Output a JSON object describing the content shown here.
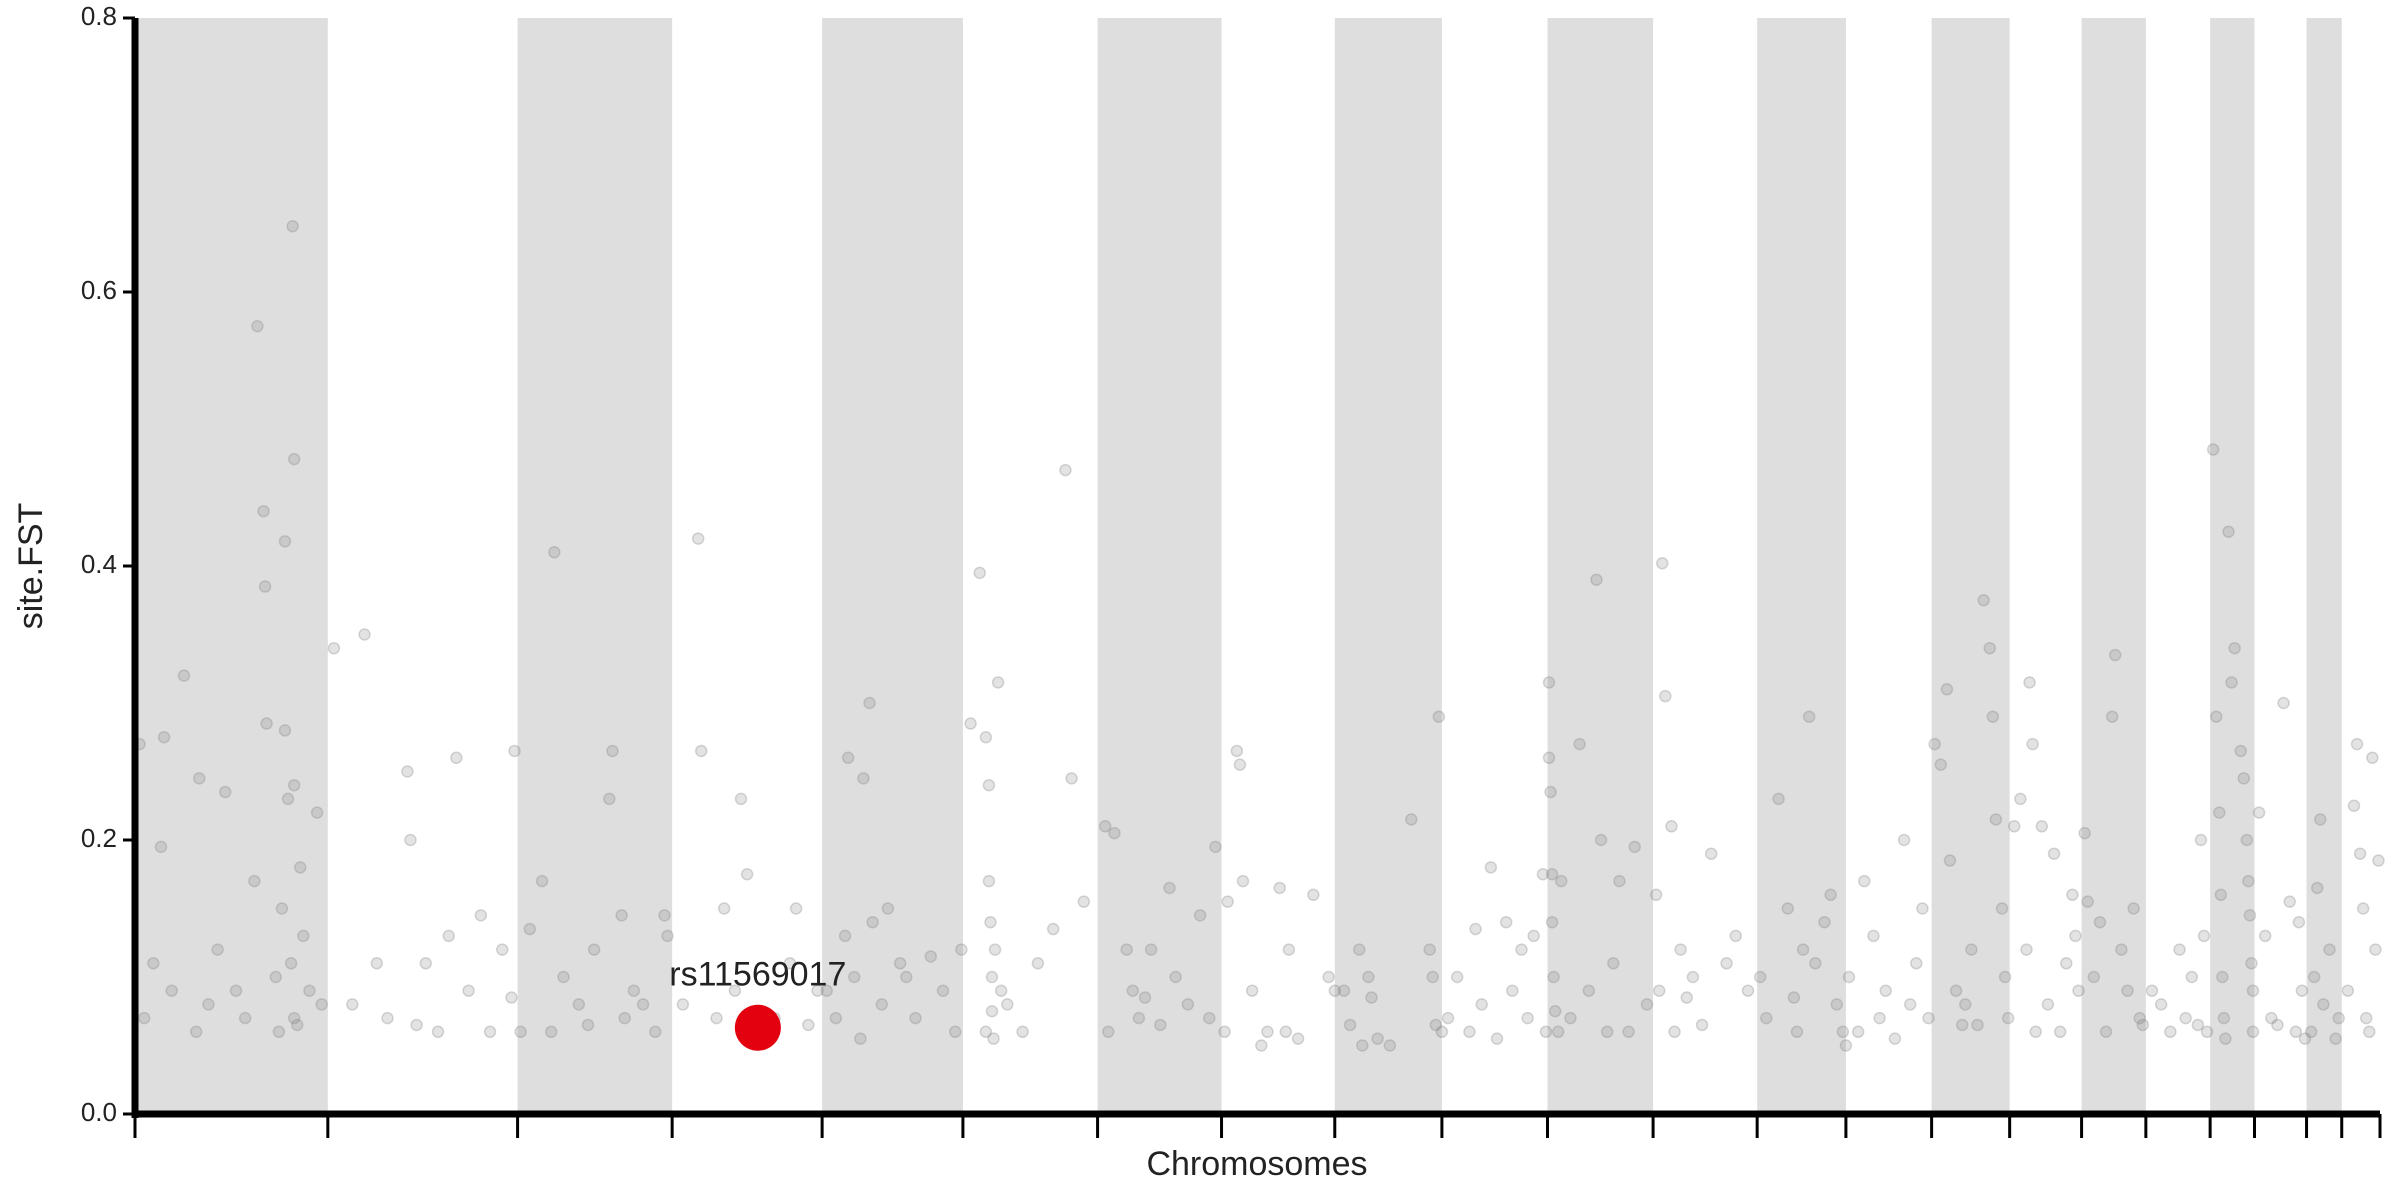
{
  "chart_data": {
    "type": "scatter",
    "xlabel": "Chromosomes",
    "ylabel": "site.FST",
    "xlim": [
      0,
      1467
    ],
    "ylim": [
      0,
      0.8
    ],
    "yticks": [
      {
        "value": 0,
        "label": "0.0"
      },
      0.2,
      0.4,
      0.6,
      0.8
    ],
    "xticks": [
      0,
      126,
      250,
      351,
      449,
      541,
      629,
      710,
      784,
      854,
      923,
      992,
      1060,
      1118,
      1174,
      1225,
      1272,
      1314,
      1356,
      1385,
      1419,
      1442,
      1467
    ],
    "band_color": "#dedede",
    "series": [
      {
        "color": "#808080",
        "x": [
          3,
          6,
          12,
          17,
          19,
          24,
          32,
          40,
          42,
          48,
          54,
          59,
          66,
          72,
          78,
          80,
          84,
          85,
          86,
          92,
          94,
          96,
          98,
          98,
          100,
          102,
          103,
          104,
          104,
          104,
          106,
          108,
          110,
          114,
          119,
          122,
          130,
          142,
          150,
          158,
          165,
          178,
          180,
          184,
          190,
          198,
          205,
          210,
          218,
          226,
          232,
          240,
          246,
          248,
          252,
          258,
          266,
          272,
          274,
          280,
          290,
          296,
          300,
          310,
          312,
          318,
          320,
          326,
          332,
          340,
          346,
          348,
          358,
          368,
          370,
          380,
          385,
          392,
          396,
          400,
          405,
          418,
          428,
          432,
          440,
          446,
          452,
          458,
          464,
          466,
          470,
          474,
          476,
          480,
          482,
          488,
          492,
          500,
          504,
          510,
          520,
          528,
          536,
          540,
          546,
          552,
          556,
          556,
          558,
          558,
          559,
          560,
          560,
          561,
          562,
          564,
          566,
          570,
          580,
          590,
          600,
          608,
          612,
          620,
          634,
          636,
          640,
          648,
          652,
          656,
          660,
          664,
          670,
          676,
          680,
          688,
          696,
          702,
          706,
          712,
          714,
          720,
          722,
          724,
          730,
          736,
          740,
          748,
          752,
          754,
          760,
          770,
          780,
          784,
          790,
          794,
          800,
          802,
          806,
          808,
          812,
          820,
          834,
          846,
          848,
          850,
          852,
          854,
          858,
          864,
          872,
          876,
          880,
          886,
          890,
          896,
          900,
          906,
          910,
          914,
          920,
          922,
          924,
          924,
          925,
          926,
          926,
          927,
          928,
          930,
          932,
          938,
          944,
          950,
          955,
          958,
          962,
          966,
          970,
          976,
          980,
          988,
          994,
          996,
          998,
          1000,
          1004,
          1006,
          1010,
          1014,
          1018,
          1024,
          1030,
          1040,
          1046,
          1054,
          1062,
          1066,
          1074,
          1080,
          1084,
          1086,
          1090,
          1094,
          1098,
          1104,
          1108,
          1112,
          1116,
          1118,
          1120,
          1126,
          1130,
          1136,
          1140,
          1144,
          1150,
          1156,
          1160,
          1164,
          1168,
          1172,
          1176,
          1180,
          1184,
          1186,
          1190,
          1194,
          1196,
          1200,
          1204,
          1208,
          1212,
          1214,
          1216,
          1220,
          1222,
          1224,
          1228,
          1232,
          1236,
          1238,
          1240,
          1242,
          1246,
          1250,
          1254,
          1258,
          1262,
          1266,
          1268,
          1270,
          1274,
          1276,
          1280,
          1284,
          1288,
          1292,
          1294,
          1298,
          1302,
          1306,
          1310,
          1312,
          1318,
          1324,
          1330,
          1336,
          1340,
          1344,
          1348,
          1350,
          1352,
          1354,
          1358,
          1360,
          1362,
          1363,
          1364,
          1365,
          1366,
          1368,
          1370,
          1372,
          1376,
          1378,
          1380,
          1381,
          1382,
          1383,
          1384,
          1384,
          1388,
          1392,
          1396,
          1400,
          1404,
          1408,
          1412,
          1414,
          1416,
          1418,
          1422,
          1424,
          1426,
          1428,
          1430,
          1434,
          1438,
          1440,
          1446,
          1450,
          1452,
          1454,
          1456,
          1458,
          1460,
          1462,
          1464,
          1466
        ],
        "values": [
          0.27,
          0.07,
          0.11,
          0.195,
          0.275,
          0.09,
          0.32,
          0.06,
          0.245,
          0.08,
          0.12,
          0.235,
          0.09,
          0.07,
          0.17,
          0.575,
          0.44,
          0.385,
          0.285,
          0.1,
          0.06,
          0.15,
          0.418,
          0.28,
          0.23,
          0.11,
          0.648,
          0.478,
          0.24,
          0.07,
          0.065,
          0.18,
          0.13,
          0.09,
          0.22,
          0.08,
          0.34,
          0.08,
          0.35,
          0.11,
          0.07,
          0.25,
          0.2,
          0.065,
          0.11,
          0.06,
          0.13,
          0.26,
          0.09,
          0.145,
          0.06,
          0.12,
          0.085,
          0.265,
          0.06,
          0.135,
          0.17,
          0.06,
          0.41,
          0.1,
          0.08,
          0.065,
          0.12,
          0.23,
          0.265,
          0.145,
          0.07,
          0.09,
          0.08,
          0.06,
          0.145,
          0.13,
          0.08,
          0.42,
          0.265,
          0.07,
          0.15,
          0.09,
          0.23,
          0.175,
          0.06,
          0.07,
          0.11,
          0.15,
          0.065,
          0.09,
          0.09,
          0.07,
          0.13,
          0.26,
          0.1,
          0.055,
          0.245,
          0.3,
          0.14,
          0.08,
          0.15,
          0.11,
          0.1,
          0.07,
          0.115,
          0.09,
          0.06,
          0.12,
          0.285,
          0.395,
          0.275,
          0.06,
          0.24,
          0.17,
          0.14,
          0.1,
          0.075,
          0.055,
          0.12,
          0.315,
          0.09,
          0.08,
          0.06,
          0.11,
          0.135,
          0.47,
          0.245,
          0.155,
          0.21,
          0.06,
          0.205,
          0.12,
          0.09,
          0.07,
          0.085,
          0.12,
          0.065,
          0.165,
          0.1,
          0.08,
          0.145,
          0.07,
          0.195,
          0.06,
          0.155,
          0.265,
          0.255,
          0.17,
          0.09,
          0.05,
          0.06,
          0.165,
          0.06,
          0.12,
          0.055,
          0.16,
          0.1,
          0.09,
          0.09,
          0.065,
          0.12,
          0.05,
          0.1,
          0.085,
          0.055,
          0.05,
          0.215,
          0.12,
          0.1,
          0.065,
          0.29,
          0.06,
          0.07,
          0.1,
          0.06,
          0.135,
          0.08,
          0.18,
          0.055,
          0.14,
          0.09,
          0.12,
          0.07,
          0.13,
          0.175,
          0.06,
          0.315,
          0.26,
          0.235,
          0.175,
          0.14,
          0.1,
          0.075,
          0.06,
          0.17,
          0.07,
          0.27,
          0.09,
          0.39,
          0.2,
          0.06,
          0.11,
          0.17,
          0.06,
          0.195,
          0.08,
          0.16,
          0.09,
          0.402,
          0.305,
          0.21,
          0.06,
          0.12,
          0.085,
          0.1,
          0.065,
          0.19,
          0.11,
          0.13,
          0.09,
          0.1,
          0.07,
          0.23,
          0.15,
          0.085,
          0.06,
          0.12,
          0.29,
          0.11,
          0.14,
          0.16,
          0.08,
          0.06,
          0.05,
          0.1,
          0.06,
          0.17,
          0.13,
          0.07,
          0.09,
          0.055,
          0.2,
          0.08,
          0.11,
          0.15,
          0.07,
          0.27,
          0.255,
          0.31,
          0.185,
          0.09,
          0.065,
          0.08,
          0.12,
          0.065,
          0.375,
          0.34,
          0.29,
          0.215,
          0.15,
          0.1,
          0.07,
          0.21,
          0.23,
          0.12,
          0.315,
          0.27,
          0.06,
          0.21,
          0.08,
          0.19,
          0.06,
          0.11,
          0.16,
          0.13,
          0.09,
          0.205,
          0.155,
          0.1,
          0.14,
          0.06,
          0.29,
          0.335,
          0.12,
          0.09,
          0.15,
          0.07,
          0.065,
          0.09,
          0.08,
          0.06,
          0.12,
          0.07,
          0.1,
          0.065,
          0.2,
          0.13,
          0.06,
          0.485,
          0.29,
          0.22,
          0.16,
          0.1,
          0.07,
          0.055,
          0.425,
          0.315,
          0.34,
          0.265,
          0.245,
          0.2,
          0.17,
          0.145,
          0.11,
          0.09,
          0.06,
          0.22,
          0.13,
          0.07,
          0.065,
          0.3,
          0.155,
          0.06,
          0.14,
          0.09,
          0.055,
          0.06,
          0.1,
          0.165,
          0.215,
          0.08,
          0.12,
          0.055,
          0.07,
          0.09,
          0.225,
          0.27,
          0.19,
          0.15,
          0.07,
          0.06,
          0.26,
          0.12,
          0.185
        ]
      },
      {
        "color": "#e3000f",
        "highlight": true,
        "x": [
          407
        ],
        "values": [
          0.063
        ],
        "point_labels": [
          "rs11569017"
        ]
      }
    ]
  }
}
